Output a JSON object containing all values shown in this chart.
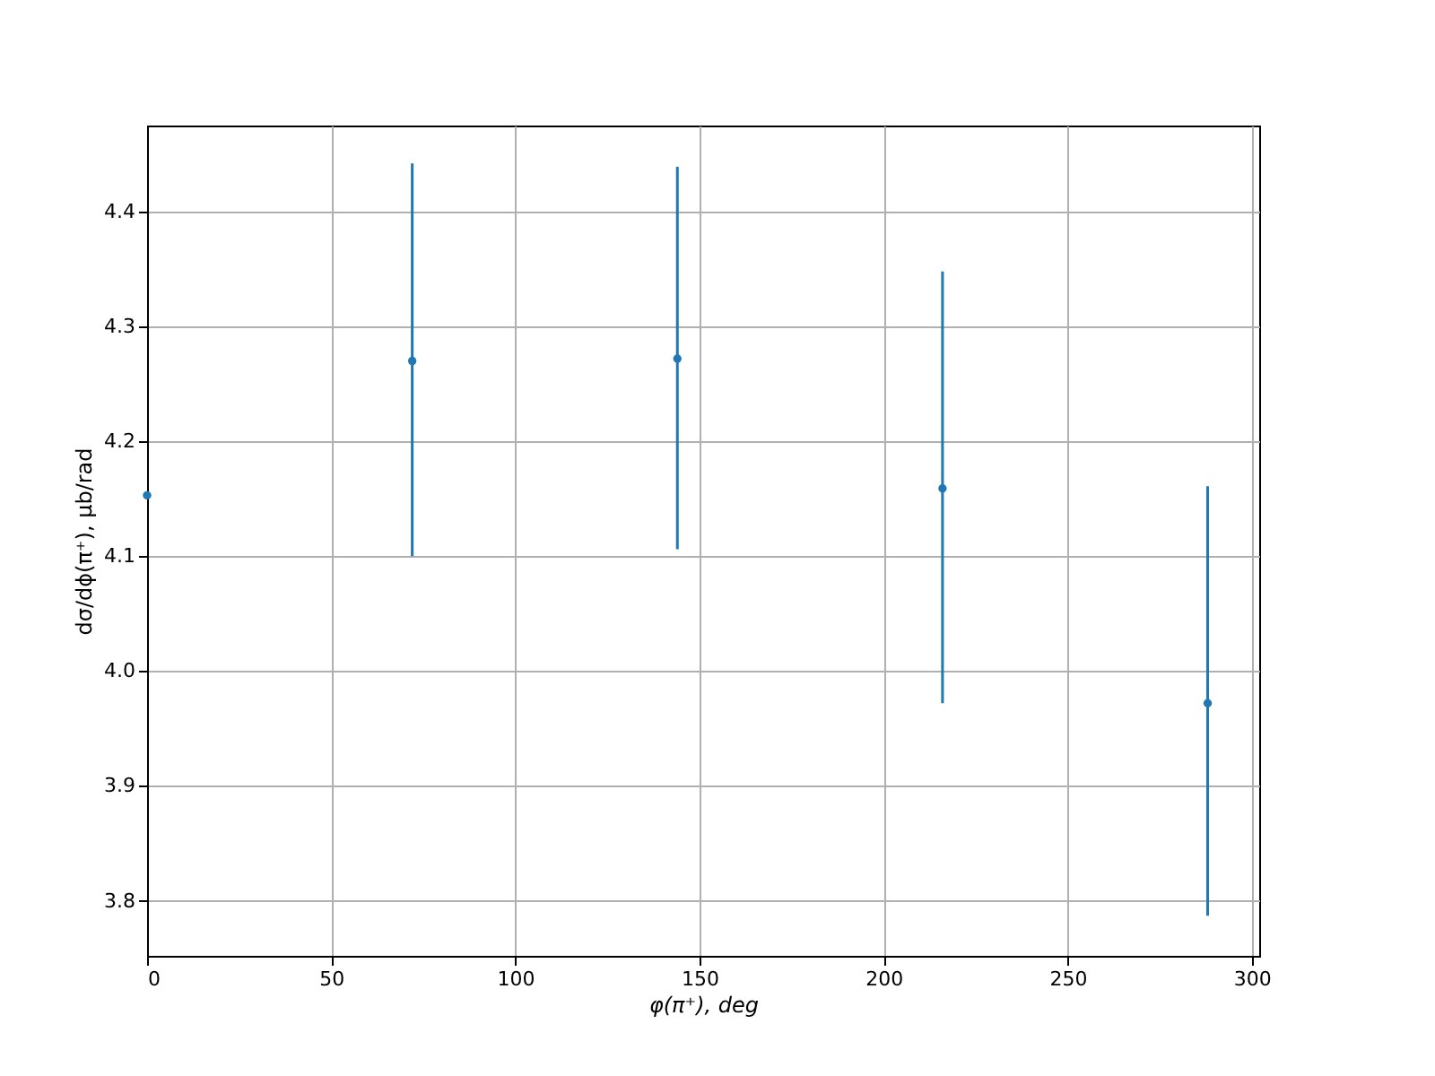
{
  "chart_data": {
    "type": "scatter",
    "xlabel": "φ(π⁺), deg",
    "ylabel": "dσ/dϕ(π⁺), μb/rad",
    "x": [
      0,
      72,
      144,
      216,
      288
    ],
    "series": [
      {
        "color": "#1f77b4",
        "values": [
          4.153,
          4.27,
          4.272,
          4.159,
          3.972
        ],
        "errors": [
          null,
          [
            4.1,
            4.442
          ],
          [
            4.106,
            4.439
          ],
          [
            3.972,
            4.348
          ],
          [
            3.787,
            4.161
          ]
        ]
      }
    ],
    "xlim": [
      0,
      302
    ],
    "ylim": [
      3.752,
      4.475
    ],
    "xticks": [
      0,
      50,
      100,
      150,
      200,
      250,
      300
    ],
    "yticks": [
      3.8,
      3.9,
      {
        "value": 4.0,
        "label": "4.0"
      },
      4.1,
      4.2,
      4.3,
      4.4
    ],
    "grid": true,
    "marker": "circle"
  }
}
